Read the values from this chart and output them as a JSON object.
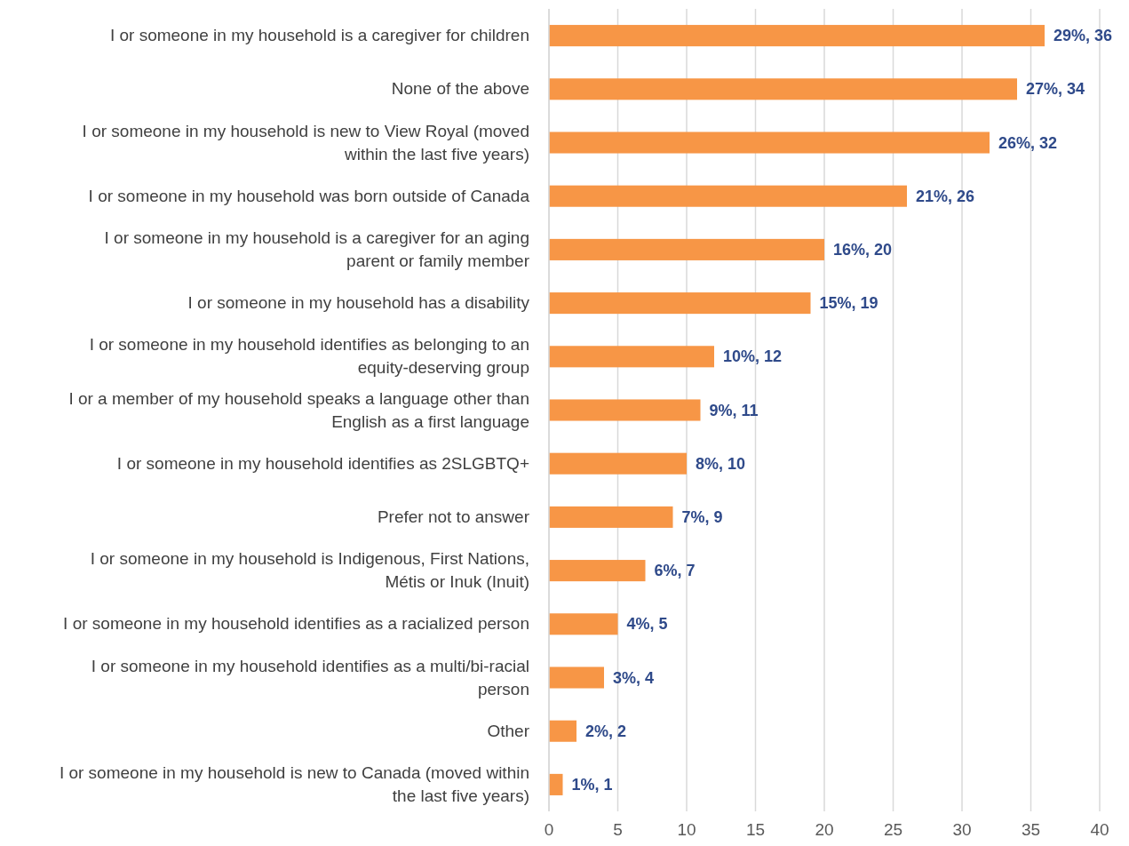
{
  "chart_data": {
    "type": "bar",
    "orientation": "horizontal",
    "categories": [
      "I or someone in my household is a caregiver for children",
      "None of the above",
      "I or someone in my household is new to View Royal (moved within the last five years)",
      "I or someone in my household was born outside of Canada",
      "I or someone in my household is a caregiver for an aging parent or family member",
      "I or someone in my household has a disability",
      "I or someone in my household identifies as belonging to an equity-deserving group",
      "I or a member of my household speaks a language other than English as a first language",
      "I or someone in my household identifies as 2SLGBTQ+",
      "Prefer not to answer",
      "I or someone in my household is Indigenous, First Nations, Métis or Inuk (Inuit)",
      "I or someone in my household identifies as a racialized person",
      "I or someone in my household identifies as a multi/bi-racial person",
      "Other",
      "I or someone in my household is new to Canada (moved within the last five years)"
    ],
    "values": [
      36,
      34,
      32,
      26,
      20,
      19,
      12,
      11,
      10,
      9,
      7,
      5,
      4,
      2,
      1
    ],
    "value_labels": [
      "29%, 36",
      "27%, 34",
      "26%, 32",
      "21%, 26",
      "16%, 20",
      "15%, 19",
      "10%, 12",
      "9%, 11",
      "8%, 10",
      "7%, 9",
      "6%, 7",
      "4%, 5",
      "3%, 4",
      "2%, 2",
      "1%, 1"
    ],
    "color": "#f79646",
    "xlim": [
      0,
      40
    ],
    "xticks": [
      0,
      5,
      10,
      15,
      20,
      25,
      30,
      35,
      40
    ],
    "grid": "x"
  }
}
